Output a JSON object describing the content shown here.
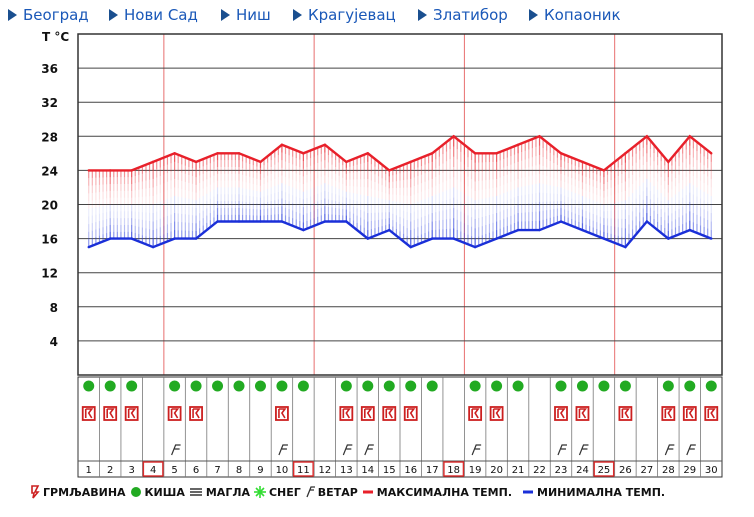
{
  "nav": {
    "items": [
      {
        "label": "Београд",
        "name": "nav-beograd"
      },
      {
        "label": "Нови Сад",
        "name": "nav-novi-sad"
      },
      {
        "label": "Ниш",
        "name": "nav-nis"
      },
      {
        "label": "Крагујевац",
        "name": "nav-kragujevac"
      },
      {
        "label": "Златибор",
        "name": "nav-zlatibor"
      },
      {
        "label": "Копаоник",
        "name": "nav-kopaonik"
      }
    ]
  },
  "chart_data": {
    "type": "line",
    "ylabel": "T °C",
    "ylim": [
      0,
      40
    ],
    "yticks": [
      4,
      8,
      12,
      16,
      20,
      24,
      28,
      32,
      36
    ],
    "grid": true,
    "x": [
      1,
      2,
      3,
      4,
      5,
      6,
      7,
      8,
      9,
      10,
      11,
      12,
      13,
      14,
      15,
      16,
      17,
      18,
      19,
      20,
      21,
      22,
      23,
      24,
      25,
      26,
      27,
      28,
      29,
      30
    ],
    "highlighted_days": [
      4,
      11,
      18,
      25
    ],
    "series": [
      {
        "name": "МАКСИМАЛНА ТЕМП.",
        "color": "#e8202a",
        "values": [
          24,
          24,
          24,
          25,
          26,
          25,
          26,
          26,
          25,
          27,
          26,
          27,
          25,
          26,
          24,
          25,
          26,
          28,
          26,
          26,
          27,
          28,
          26,
          25,
          24,
          26,
          28,
          25,
          28,
          26
        ]
      },
      {
        "name": "МИНИМАЛНА ТЕМП.",
        "color": "#1a2fd8",
        "values": [
          15,
          16,
          16,
          15,
          16,
          16,
          18,
          18,
          18,
          18,
          17,
          18,
          18,
          16,
          17,
          15,
          16,
          16,
          15,
          16,
          17,
          17,
          18,
          17,
          16,
          15,
          18,
          16,
          17,
          16
        ]
      }
    ],
    "icons": {
      "rain": [
        1,
        2,
        3,
        5,
        6,
        7,
        8,
        9,
        10,
        11,
        13,
        14,
        15,
        16,
        17,
        19,
        20,
        21,
        23,
        24,
        25,
        26,
        28,
        29,
        30
      ],
      "thunderstorm": [
        1,
        2,
        3,
        5,
        6,
        10,
        13,
        14,
        15,
        16,
        19,
        20,
        23,
        24,
        26,
        28,
        29,
        30
      ],
      "wind": [
        5,
        10,
        13,
        14,
        19,
        23,
        24,
        28,
        29
      ]
    }
  },
  "legend": {
    "thunder": "ГРМЉАВИНА",
    "rain": "КИША",
    "fog": "МАГЛА",
    "snow": "СНЕГ",
    "wind": "ВЕТАР",
    "max": "МАКСИМАЛНА ТЕМП.",
    "min": "МИНИМАЛНА ТЕМП."
  },
  "colors": {
    "nav_link": "#1a58b8",
    "rain": "#22aa22",
    "thunder": "#cc2020",
    "snow": "#33dd33"
  }
}
